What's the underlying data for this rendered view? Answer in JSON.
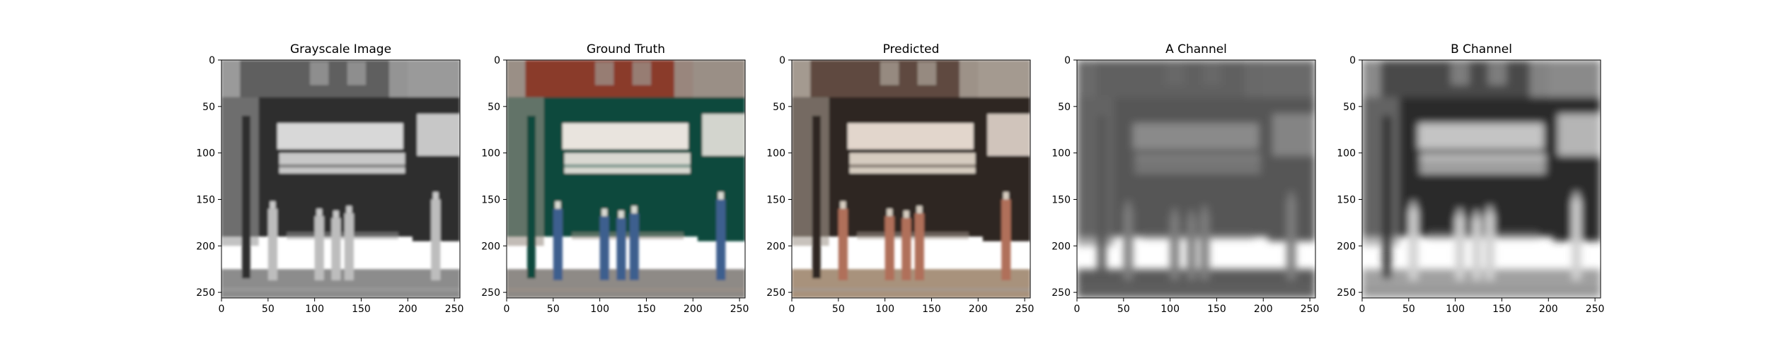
{
  "chart_data": [
    {
      "type": "image",
      "title": "Grayscale Image",
      "image_size": [
        256,
        256
      ],
      "xlim": [
        0,
        256
      ],
      "ylim": [
        256,
        0
      ],
      "xticks": [
        0,
        50,
        100,
        150,
        200,
        250
      ],
      "yticks": [
        0,
        50,
        100,
        150,
        200,
        250
      ],
      "colormap": "grayscale",
      "palette": {
        "sky": "#9a9a9a",
        "building": "#5e5e5e",
        "facade": "#2e2e2e",
        "awning": "#c8c8c8",
        "sign": "#d8d8d8",
        "street": "#8c8c8c",
        "people": "#bdbdbd"
      }
    },
    {
      "type": "image",
      "title": "Ground Truth",
      "image_size": [
        256,
        256
      ],
      "xlim": [
        0,
        256
      ],
      "ylim": [
        256,
        0
      ],
      "xticks": [
        0,
        50,
        100,
        150,
        200,
        250
      ],
      "yticks": [
        0,
        50,
        100,
        150,
        200,
        250
      ],
      "colormap": "rgb",
      "palette": {
        "sky": "#9a8f86",
        "building": "#8a3a2a",
        "facade": "#114a3c",
        "awning": "#d9d9d2",
        "sign": "#e9e4de",
        "street": "#8e8a86",
        "people": "#3e5f8e"
      }
    },
    {
      "type": "image",
      "title": "Predicted",
      "image_size": [
        256,
        256
      ],
      "xlim": [
        0,
        256
      ],
      "ylim": [
        256,
        0
      ],
      "xticks": [
        0,
        50,
        100,
        150,
        200,
        250
      ],
      "yticks": [
        0,
        50,
        100,
        150,
        200,
        250
      ],
      "colormap": "rgb",
      "palette": {
        "sky": "#a49a90",
        "building": "#5e4a40",
        "facade": "#2f2520",
        "awning": "#d6ccc0",
        "sign": "#e2d6cc",
        "street": "#a8927c",
        "people": "#b06f5a"
      }
    },
    {
      "type": "image",
      "title": "A Channel",
      "image_size": [
        256,
        256
      ],
      "xlim": [
        0,
        256
      ],
      "ylim": [
        256,
        0
      ],
      "xticks": [
        0,
        50,
        100,
        150,
        200,
        250
      ],
      "yticks": [
        0,
        50,
        100,
        150,
        200,
        250
      ],
      "colormap": "grayscale",
      "palette": {
        "sky": "#6a6a6a",
        "building": "#616161",
        "facade": "#575757",
        "awning": "#7a7a7a",
        "sign": "#8a8a8a",
        "street": "#5a5a5a",
        "people": "#7d7d7d"
      }
    },
    {
      "type": "image",
      "title": "B Channel",
      "image_size": [
        256,
        256
      ],
      "xlim": [
        0,
        256
      ],
      "ylim": [
        256,
        0
      ],
      "xticks": [
        0,
        50,
        100,
        150,
        200,
        250
      ],
      "yticks": [
        0,
        50,
        100,
        150,
        200,
        250
      ],
      "colormap": "grayscale",
      "palette": {
        "sky": "#8a8a8a",
        "building": "#4a4a4a",
        "facade": "#2c2c2c",
        "awning": "#b4b4b4",
        "sign": "#c4c4c4",
        "street": "#a0a0a0",
        "people": "#d0d0d0"
      }
    }
  ]
}
